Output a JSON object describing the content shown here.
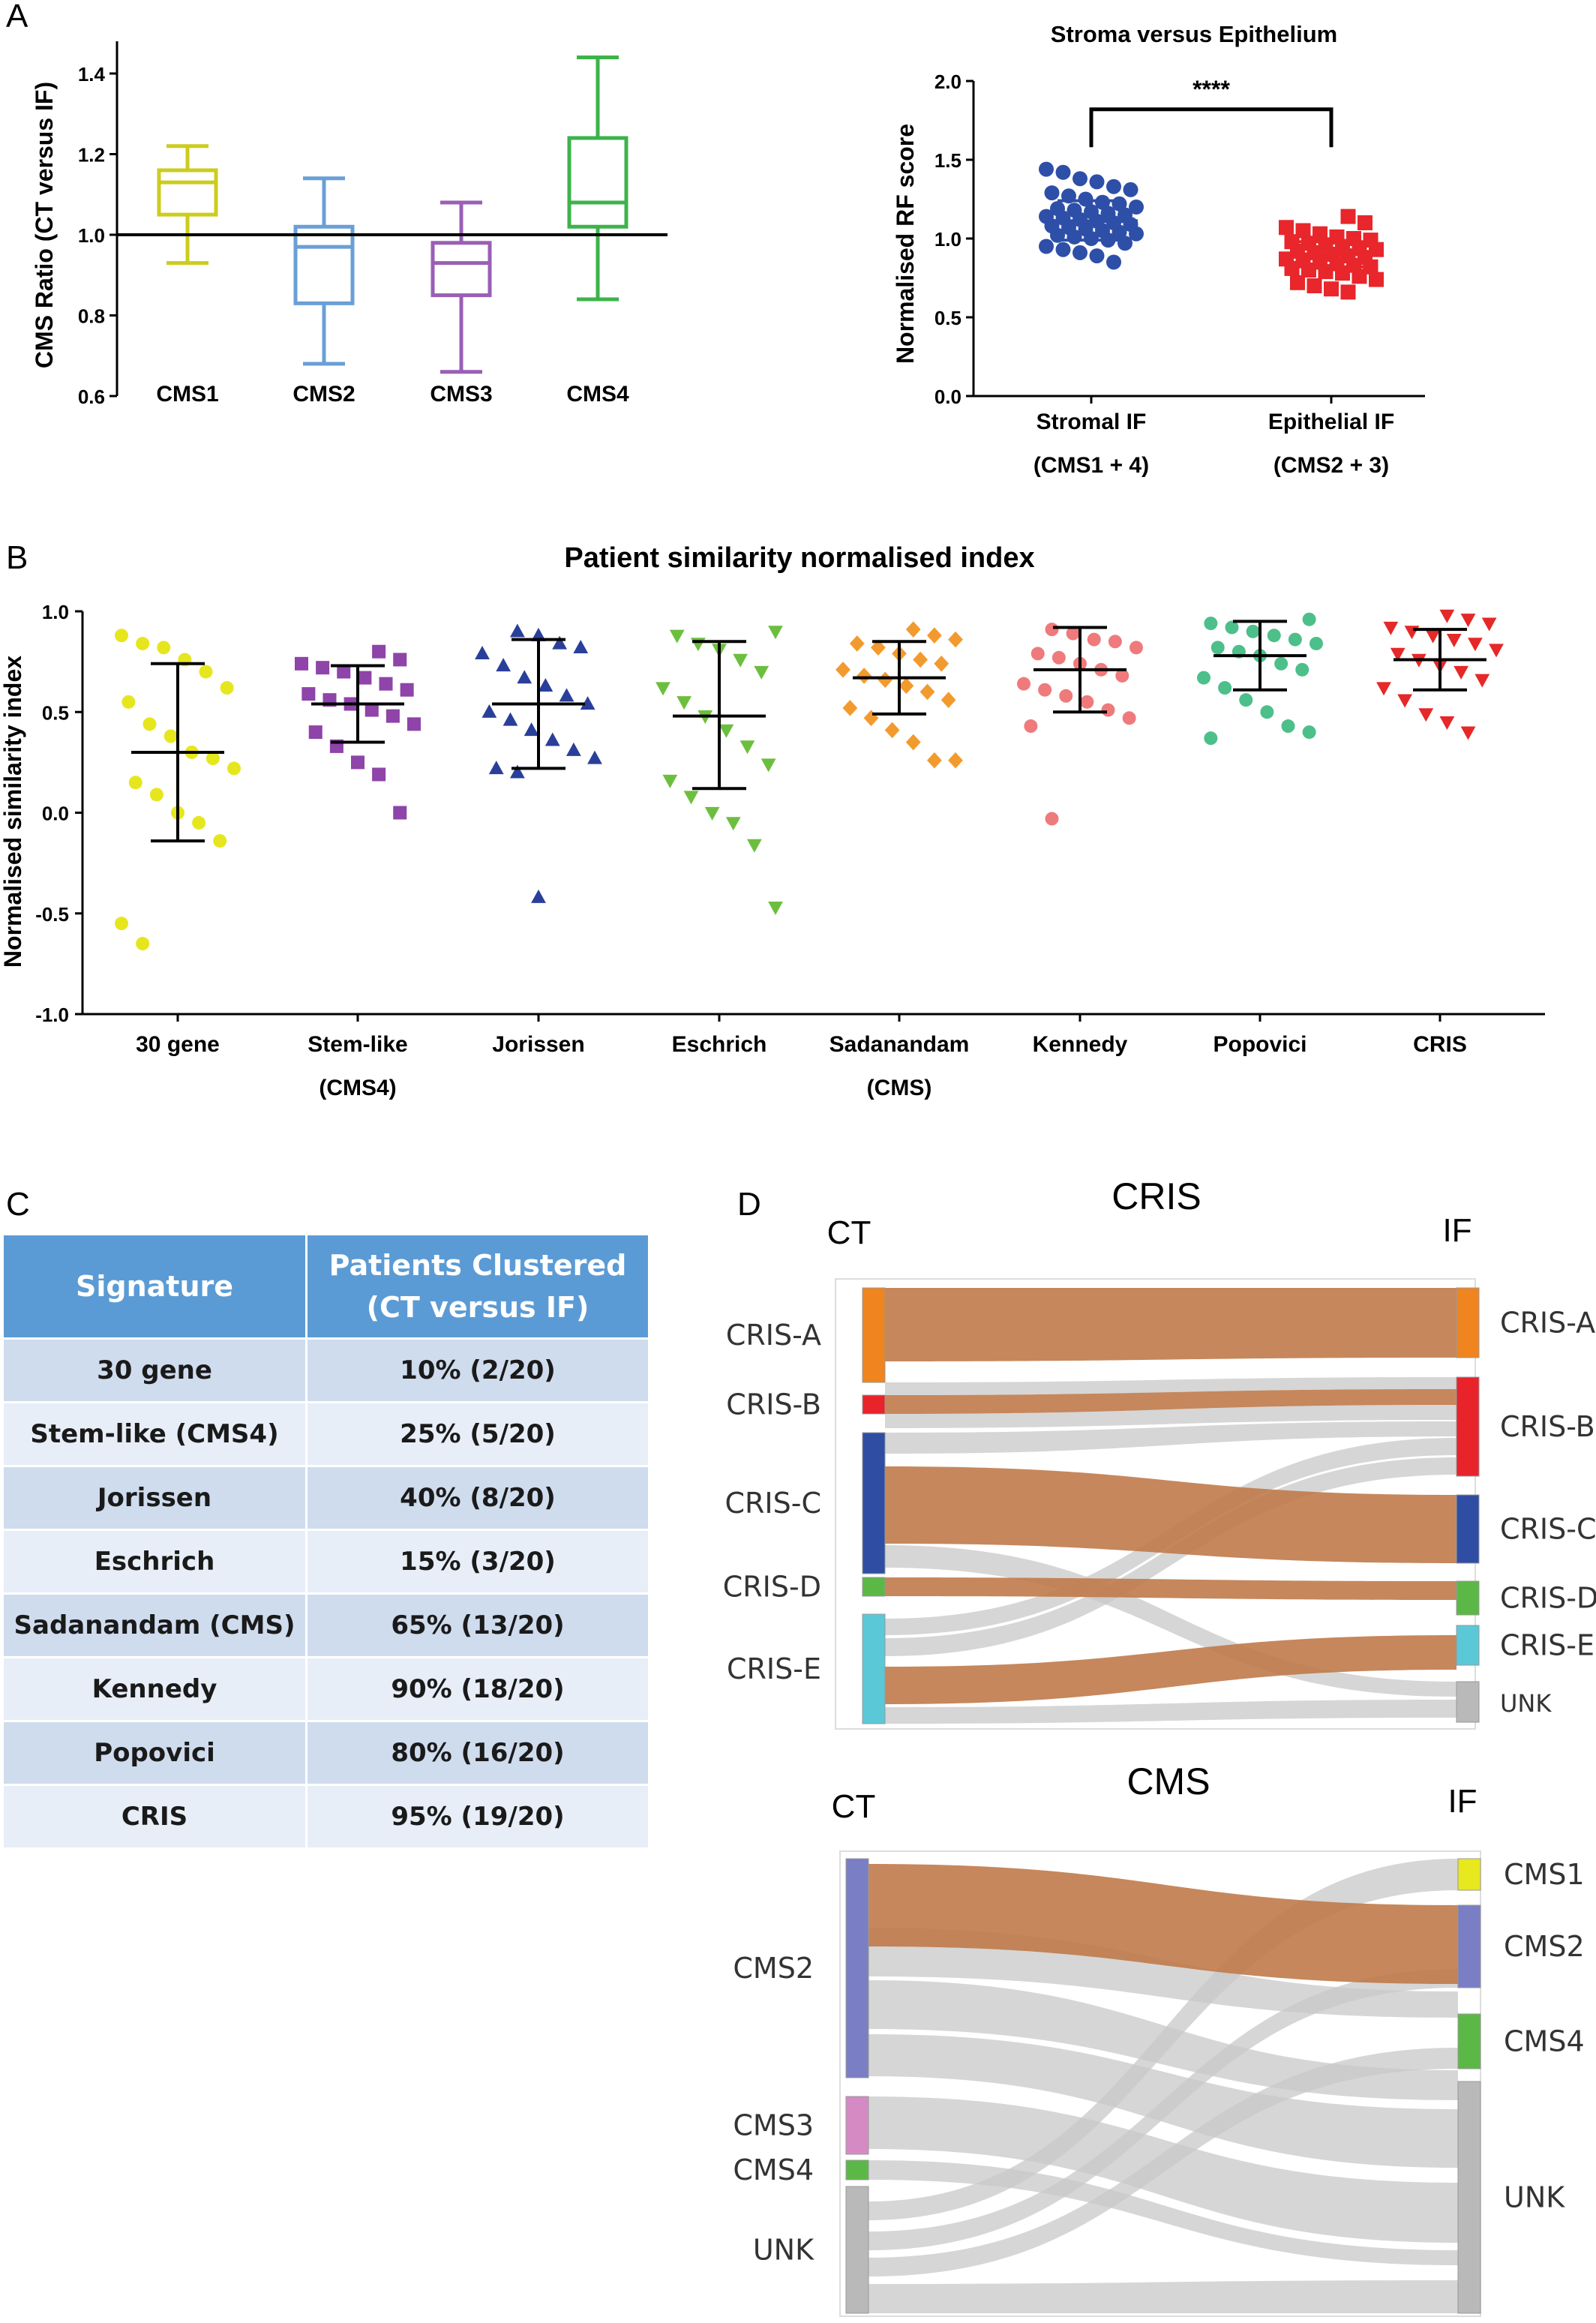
{
  "panel_letters": {
    "a": "A",
    "b": "B",
    "c": "C",
    "d": "D"
  },
  "chart_data": [
    {
      "type": "box",
      "ylabel": "CMS Ratio (CT versus IF)",
      "xlabel": "",
      "ylim": [
        0.6,
        1.48
      ],
      "yticks": [
        "0.6",
        "0.8",
        "1.0",
        "1.2",
        "1.4"
      ],
      "reference_line": 1.0,
      "categories": [
        "CMS1",
        "CMS2",
        "CMS3",
        "CMS4"
      ],
      "colors": [
        "#cccc1e",
        "#6a9fd6",
        "#9a5fb5",
        "#3cb34a"
      ],
      "boxes": [
        {
          "min": 0.93,
          "q1": 1.05,
          "median": 1.13,
          "q3": 1.16,
          "max": 1.22
        },
        {
          "min": 0.68,
          "q1": 0.83,
          "median": 0.97,
          "q3": 1.02,
          "max": 1.14
        },
        {
          "min": 0.66,
          "q1": 0.85,
          "median": 0.93,
          "q3": 0.98,
          "max": 1.08
        },
        {
          "min": 0.84,
          "q1": 1.02,
          "median": 1.08,
          "q3": 1.24,
          "max": 1.44
        }
      ]
    },
    {
      "type": "scatter",
      "title": "Stroma versus Epithelium",
      "ylabel": "Normalised RF score",
      "ylim": [
        0.0,
        2.0
      ],
      "yticks": [
        "0.0",
        "0.5",
        "1.0",
        "1.5",
        "2.0"
      ],
      "categories": [
        "Stromal IF",
        "Epithelial IF"
      ],
      "category_sublabels": [
        "(CMS1 + 4)",
        "(CMS2 + 3)"
      ],
      "significance": "****",
      "series": [
        {
          "color": "#2e4fa8",
          "marker": "circle",
          "mean": 1.11,
          "sd_low": 0.99,
          "sd_high": 1.24,
          "values": [
            1.44,
            1.42,
            1.38,
            1.36,
            1.33,
            1.31,
            1.29,
            1.27,
            1.25,
            1.23,
            1.22,
            1.2,
            1.19,
            1.18,
            1.17,
            1.16,
            1.15,
            1.14,
            1.13,
            1.12,
            1.11,
            1.1,
            1.09,
            1.08,
            1.07,
            1.06,
            1.05,
            1.04,
            1.03,
            1.02,
            1.01,
            1.0,
            0.99,
            0.97,
            0.95,
            0.93,
            0.91,
            0.89,
            0.85
          ]
        },
        {
          "color": "#e8262b",
          "marker": "square",
          "mean": 0.9,
          "sd_low": 0.82,
          "sd_high": 0.98,
          "values": [
            1.14,
            1.1,
            1.07,
            1.05,
            1.03,
            1.01,
            1.0,
            0.99,
            0.98,
            0.97,
            0.96,
            0.95,
            0.94,
            0.93,
            0.92,
            0.91,
            0.9,
            0.89,
            0.88,
            0.87,
            0.86,
            0.85,
            0.84,
            0.83,
            0.82,
            0.81,
            0.8,
            0.79,
            0.78,
            0.76,
            0.74,
            0.72,
            0.7,
            0.68,
            0.66
          ]
        }
      ]
    },
    {
      "type": "scatter",
      "title": "Patient similarity normalised index",
      "ylabel": "Normalised similarity index",
      "ylim": [
        -1.0,
        1.0
      ],
      "yticks": [
        "-1.0",
        "-0.5",
        "0.0",
        "0.5",
        "1.0"
      ],
      "categories": [
        "30 gene",
        "Stem-like",
        "Jorissen",
        "Eschrich",
        "Sadanandam",
        "Kennedy",
        "Popovici",
        "CRIS"
      ],
      "category_sublabels": [
        "",
        "(CMS4)",
        "",
        "",
        "(CMS)",
        "",
        "",
        ""
      ],
      "series": [
        {
          "color": "#e6e61e",
          "marker": "circle",
          "mean": 0.3,
          "sd_low": -0.14,
          "sd_high": 0.74,
          "values": [
            0.88,
            0.84,
            0.82,
            0.76,
            0.7,
            0.62,
            0.55,
            0.44,
            0.38,
            0.3,
            0.27,
            0.22,
            0.15,
            0.09,
            0.0,
            -0.05,
            -0.14,
            -0.55,
            -0.65
          ]
        },
        {
          "color": "#8e44a8",
          "marker": "square",
          "mean": 0.54,
          "sd_low": 0.35,
          "sd_high": 0.73,
          "values": [
            0.8,
            0.76,
            0.74,
            0.72,
            0.7,
            0.67,
            0.64,
            0.61,
            0.59,
            0.56,
            0.54,
            0.51,
            0.48,
            0.44,
            0.4,
            0.33,
            0.25,
            0.19,
            0.0
          ]
        },
        {
          "color": "#2a3f9a",
          "marker": "triangle-up",
          "mean": 0.54,
          "sd_low": 0.22,
          "sd_high": 0.86,
          "values": [
            0.9,
            0.88,
            0.84,
            0.82,
            0.79,
            0.73,
            0.67,
            0.63,
            0.58,
            0.54,
            0.5,
            0.46,
            0.41,
            0.36,
            0.31,
            0.27,
            0.22,
            0.2,
            -0.42
          ]
        },
        {
          "color": "#6cbf3e",
          "marker": "triangle-down",
          "mean": 0.48,
          "sd_low": 0.12,
          "sd_high": 0.85,
          "values": [
            0.9,
            0.88,
            0.84,
            0.81,
            0.76,
            0.7,
            0.62,
            0.55,
            0.48,
            0.41,
            0.33,
            0.24,
            0.16,
            0.08,
            0.0,
            -0.05,
            -0.16,
            -0.47
          ]
        },
        {
          "color": "#f39a2e",
          "marker": "diamond",
          "mean": 0.67,
          "sd_low": 0.49,
          "sd_high": 0.85,
          "values": [
            0.91,
            0.88,
            0.86,
            0.84,
            0.82,
            0.79,
            0.76,
            0.74,
            0.71,
            0.68,
            0.66,
            0.63,
            0.6,
            0.56,
            0.52,
            0.47,
            0.41,
            0.35,
            0.26,
            0.26
          ]
        },
        {
          "color": "#ef7a7c",
          "marker": "circle",
          "mean": 0.71,
          "sd_low": 0.5,
          "sd_high": 0.92,
          "values": [
            0.91,
            0.89,
            0.86,
            0.85,
            0.82,
            0.79,
            0.77,
            0.74,
            0.71,
            0.68,
            0.64,
            0.61,
            0.58,
            0.55,
            0.51,
            0.47,
            0.43,
            -0.03
          ]
        },
        {
          "color": "#4dbf8a",
          "marker": "circle",
          "mean": 0.78,
          "sd_low": 0.61,
          "sd_high": 0.95,
          "values": [
            0.96,
            0.94,
            0.92,
            0.9,
            0.88,
            0.86,
            0.84,
            0.82,
            0.8,
            0.78,
            0.74,
            0.71,
            0.67,
            0.62,
            0.56,
            0.5,
            0.43,
            0.4,
            0.37
          ]
        },
        {
          "color": "#e52828",
          "marker": "triangle-down",
          "mean": 0.76,
          "sd_low": 0.61,
          "sd_high": 0.91,
          "values": [
            0.98,
            0.96,
            0.94,
            0.92,
            0.9,
            0.88,
            0.86,
            0.84,
            0.81,
            0.79,
            0.76,
            0.73,
            0.7,
            0.66,
            0.62,
            0.56,
            0.49,
            0.45,
            0.4
          ]
        }
      ]
    }
  ],
  "table": {
    "headers": [
      "Signature",
      "Patients Clustered\n(CT versus IF)"
    ],
    "rows": [
      [
        "30 gene",
        "10% (2/20)"
      ],
      [
        "Stem-like (CMS4)",
        "25% (5/20)"
      ],
      [
        "Jorissen",
        "40% (8/20)"
      ],
      [
        "Eschrich",
        "15% (3/20)"
      ],
      [
        "Sadanandam (CMS)",
        "65% (13/20)"
      ],
      [
        "Kennedy",
        "90% (18/20)"
      ],
      [
        "Popovici",
        "80% (16/20)"
      ],
      [
        "CRIS",
        "95% (19/20)"
      ]
    ]
  },
  "sankey": {
    "cris": {
      "title": "CRIS",
      "left_header": "CT",
      "right_header": "IF",
      "left_labels": [
        "CRIS-A",
        "CRIS-B",
        "CRIS-C",
        "CRIS-D",
        "CRIS-E"
      ],
      "right_labels": [
        "CRIS-A",
        "CRIS-B",
        "CRIS-C",
        "CRIS-D",
        "CRIS-E",
        "UNK"
      ],
      "colors": {
        "CRIS-A": "#f0841e",
        "CRIS-B": "#e8232a",
        "CRIS-C": "#2f4ea3",
        "CRIS-D": "#5cb846",
        "CRIS-E": "#5bc8d8",
        "UNK": "#b9b9b9"
      }
    },
    "cms": {
      "title": "CMS",
      "left_header": "CT",
      "right_header": "IF",
      "left_labels": [
        "CMS2",
        "CMS3",
        "CMS4",
        "UNK"
      ],
      "right_labels": [
        "CMS1",
        "CMS2",
        "CMS4",
        "UNK"
      ],
      "colors": {
        "CMS1": "#e8e81e",
        "CMS2": "#7a7ec4",
        "CMS3": "#d58ac4",
        "CMS4": "#5cb846",
        "UNK": "#b9b9b9"
      }
    },
    "same_flow_color": "#c07a4a",
    "cross_flow_color": "#c8c8c8"
  }
}
